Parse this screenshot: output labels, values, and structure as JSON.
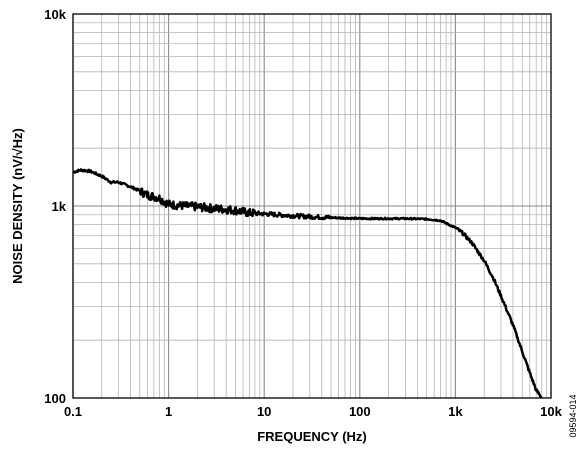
{
  "chart_data": {
    "type": "line",
    "xlabel": "FREQUENCY (Hz)",
    "ylabel": "NOISE DENSITY (nV/√Hz)",
    "xscale": "log",
    "yscale": "log",
    "xlim": [
      0.1,
      10000
    ],
    "ylim": [
      100,
      10000
    ],
    "grid": true,
    "x_ticks": [
      0.1,
      1,
      10,
      100,
      1000,
      10000
    ],
    "x_tick_labels": [
      "0.1",
      "1",
      "10",
      "100",
      "1k",
      "10k"
    ],
    "y_ticks": [
      100,
      1000,
      10000
    ],
    "y_tick_labels": [
      "100",
      "1k",
      "10k"
    ],
    "series": [
      {
        "color": "#000000",
        "x": [
          0.1,
          0.12,
          0.15,
          0.2,
          0.25,
          0.3,
          0.4,
          0.5,
          0.6,
          0.7,
          0.8,
          1,
          1.5,
          2,
          3,
          4,
          5,
          7,
          10,
          20,
          30,
          50,
          100,
          200,
          300,
          500,
          700,
          1000,
          1200,
          1500,
          2000,
          2500,
          3000,
          4000,
          5000,
          6000,
          7000,
          8000
        ],
        "y": [
          1500,
          1540,
          1520,
          1430,
          1330,
          1330,
          1260,
          1200,
          1140,
          1120,
          1100,
          1020,
          1000,
          990,
          970,
          960,
          950,
          920,
          910,
          890,
          880,
          870,
          860,
          860,
          860,
          855,
          840,
          770,
          720,
          640,
          520,
          420,
          340,
          240,
          175,
          135,
          110,
          100
        ]
      }
    ]
  },
  "figure_id": "09594-014"
}
